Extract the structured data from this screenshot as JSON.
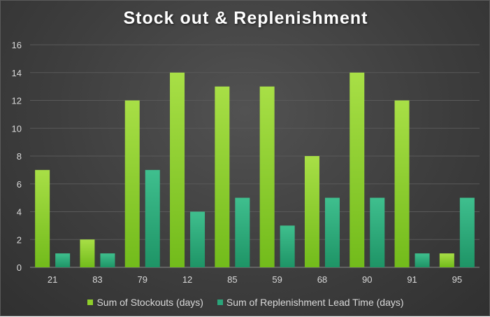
{
  "chart_data": {
    "type": "bar",
    "title": "Stock out & Replenishment",
    "categories": [
      "21",
      "83",
      "79",
      "12",
      "85",
      "59",
      "68",
      "90",
      "91",
      "95"
    ],
    "series": [
      {
        "name": "Sum of Stockouts (days)",
        "values": [
          7,
          2,
          12,
          14,
          13,
          13,
          8,
          14,
          12,
          1
        ],
        "color": "#8fcf2a"
      },
      {
        "name": "Sum of Replenishment Lead Time (days)",
        "values": [
          1,
          1,
          7,
          4,
          5,
          3,
          5,
          5,
          1,
          5
        ],
        "color": "#2aa57a"
      }
    ],
    "ylim": [
      0,
      16
    ],
    "yticks": [
      0,
      2,
      4,
      6,
      8,
      10,
      12,
      14,
      16
    ],
    "grid": true,
    "legend_position": "bottom",
    "background": "#404040",
    "text_color": "#d9d9d9"
  }
}
